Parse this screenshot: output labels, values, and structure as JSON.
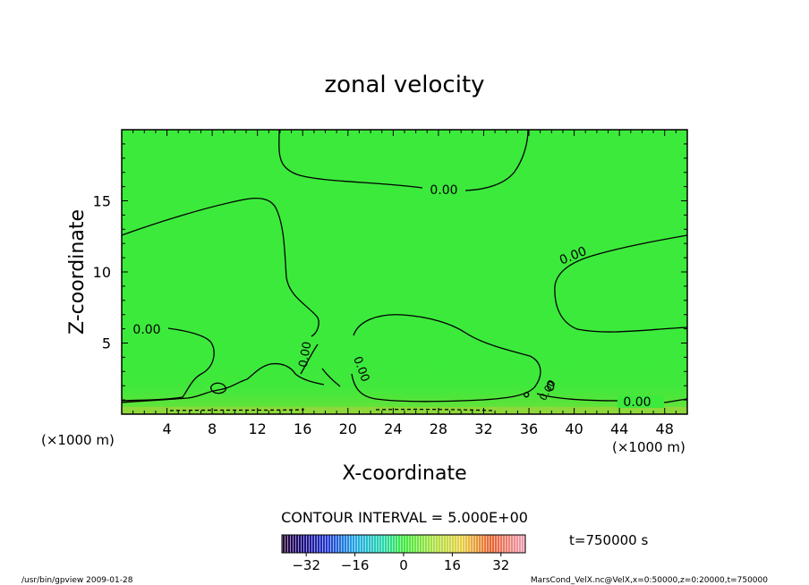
{
  "chart_data": {
    "type": "contour",
    "title": "zonal velocity",
    "xlabel": "X-coordinate",
    "ylabel": "Z-coordinate",
    "x_unit": "(×1000 m)",
    "z_unit": "(×1000 m)",
    "xlim": [
      0,
      50
    ],
    "ylim": [
      0,
      20
    ],
    "x_ticks": [
      "4",
      "8",
      "12",
      "16",
      "20",
      "24",
      "28",
      "32",
      "36",
      "40",
      "44",
      "48"
    ],
    "y_ticks": [
      "5",
      "10",
      "15"
    ],
    "contour_interval": "CONTOUR INTERVAL = 5.000E+00",
    "time": "t=750000 s",
    "colorbar": {
      "range": [
        -40,
        40
      ],
      "ticks": [
        "−32",
        "−16",
        "0",
        "16",
        "32"
      ]
    },
    "contour_labels": [
      "0.00",
      "0.00",
      "0.00",
      "0.00",
      "0.00",
      "0.00",
      "0.00"
    ],
    "footer_left": "/usr/bin/gpview   2009-01-28",
    "footer_right": "MarsCond_VelX.nc@VelX,x=0:50000,z=0:20000,t=750000",
    "colors": {
      "background_field": "#3cea3c",
      "contour": "#000000"
    }
  }
}
